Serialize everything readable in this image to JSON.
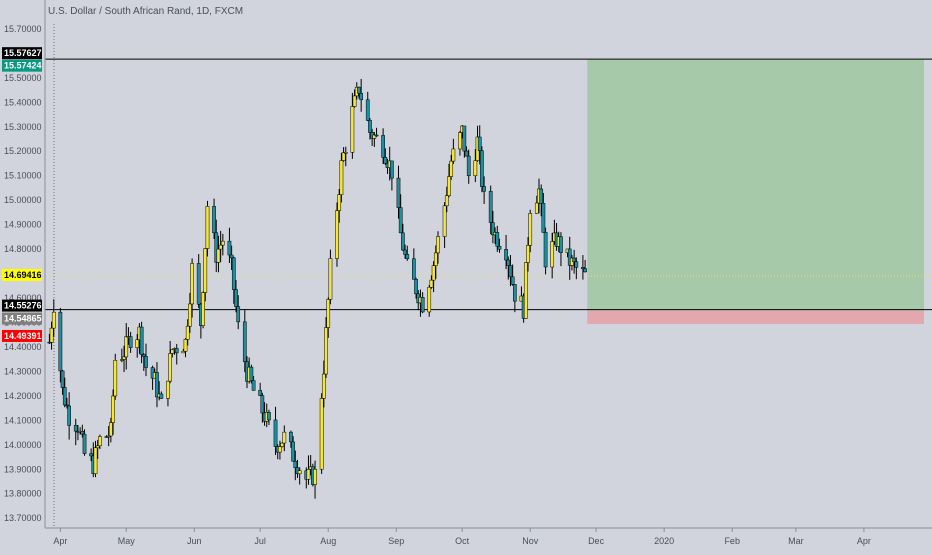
{
  "chart_data": {
    "type": "candlestick",
    "title": "U.S. Dollar / South African Rand, 1D, FXCM",
    "y_axis": {
      "range": [
        13.66,
        15.72
      ],
      "ticks": [
        "15.70000",
        "15.60000",
        "15.50000",
        "15.40000",
        "15.30000",
        "15.20000",
        "15.10000",
        "15.00000",
        "14.90000",
        "14.80000",
        "14.70000",
        "14.60000",
        "14.50000",
        "14.40000",
        "14.30000",
        "14.20000",
        "14.10000",
        "14.00000",
        "13.90000",
        "13.80000",
        "13.70000"
      ]
    },
    "x_axis": {
      "labels": [
        "Apr",
        "May",
        "Jun",
        "Jul",
        "Aug",
        "Sep",
        "Oct",
        "Nov",
        "Dec",
        "2020",
        "Feb",
        "Mar",
        "Apr"
      ]
    },
    "price_badges": [
      {
        "name": "target-line",
        "value": "15.57627",
        "bg": "#000000",
        "fg": "#ffffff"
      },
      {
        "name": "target-price",
        "value": "15.57424",
        "bg": "#089981",
        "fg": "#ffffff"
      },
      {
        "name": "current-price",
        "value": "14.69416",
        "bg": "#ffff00",
        "fg": "#000000"
      },
      {
        "name": "entry-line",
        "value": "14.55276",
        "bg": "#000000",
        "fg": "#ffffff"
      },
      {
        "name": "entry-price",
        "value": "14.54865",
        "bg": "#7f7f7f",
        "fg": "#ffffff"
      },
      {
        "name": "stop-price",
        "value": "14.49391",
        "bg": "#ff0000",
        "fg": "#ffffff"
      }
    ],
    "horizontal_lines": [
      {
        "name": "upper-line",
        "price": 15.57627,
        "color": "#000000"
      },
      {
        "name": "entry-line",
        "price": 14.55276,
        "color": "#000000"
      }
    ],
    "position_zone": {
      "start_date": "2019-11-27",
      "end_date": "2020-04-30",
      "entry": 14.54865,
      "target": 15.57424,
      "stop": 14.49391,
      "profit_color": "#a5c9a9",
      "loss_color": "#e2a8ad"
    },
    "candle_colors": {
      "up": "#f5e63b",
      "down": "#1e8fa0",
      "wick": "#000000"
    },
    "anchors": [
      {
        "d": "2019-03-27",
        "c": 14.42
      },
      {
        "d": "2019-03-29",
        "c": 14.58
      },
      {
        "d": "2019-04-02",
        "c": 14.22
      },
      {
        "d": "2019-04-05",
        "c": 14.12
      },
      {
        "d": "2019-04-09",
        "c": 14.08
      },
      {
        "d": "2019-04-12",
        "c": 13.96
      },
      {
        "d": "2019-04-16",
        "c": 13.92
      },
      {
        "d": "2019-04-19",
        "c": 14.02
      },
      {
        "d": "2019-04-24",
        "c": 14.05
      },
      {
        "d": "2019-04-26",
        "c": 14.35
      },
      {
        "d": "2019-04-30",
        "c": 14.38
      },
      {
        "d": "2019-05-03",
        "c": 14.44
      },
      {
        "d": "2019-05-07",
        "c": 14.46
      },
      {
        "d": "2019-05-10",
        "c": 14.32
      },
      {
        "d": "2019-05-14",
        "c": 14.26
      },
      {
        "d": "2019-05-17",
        "c": 14.16
      },
      {
        "d": "2019-05-22",
        "c": 14.39
      },
      {
        "d": "2019-05-28",
        "c": 14.42
      },
      {
        "d": "2019-05-31",
        "c": 14.72
      },
      {
        "d": "2019-06-04",
        "c": 14.5
      },
      {
        "d": "2019-06-07",
        "c": 14.98
      },
      {
        "d": "2019-06-11",
        "c": 14.78
      },
      {
        "d": "2019-06-14",
        "c": 14.84
      },
      {
        "d": "2019-06-18",
        "c": 14.72
      },
      {
        "d": "2019-06-21",
        "c": 14.48
      },
      {
        "d": "2019-06-25",
        "c": 14.3
      },
      {
        "d": "2019-06-28",
        "c": 14.22
      },
      {
        "d": "2019-07-03",
        "c": 14.12
      },
      {
        "d": "2019-07-08",
        "c": 14.0
      },
      {
        "d": "2019-07-12",
        "c": 14.03
      },
      {
        "d": "2019-07-17",
        "c": 13.94
      },
      {
        "d": "2019-07-22",
        "c": 13.86
      },
      {
        "d": "2019-07-26",
        "c": 13.88
      },
      {
        "d": "2019-07-30",
        "c": 14.32
      },
      {
        "d": "2019-08-02",
        "c": 14.72
      },
      {
        "d": "2019-08-07",
        "c": 15.14
      },
      {
        "d": "2019-08-12",
        "c": 15.36
      },
      {
        "d": "2019-08-15",
        "c": 15.46
      },
      {
        "d": "2019-08-20",
        "c": 15.28
      },
      {
        "d": "2019-08-26",
        "c": 15.22
      },
      {
        "d": "2019-08-30",
        "c": 15.12
      },
      {
        "d": "2019-09-03",
        "c": 14.86
      },
      {
        "d": "2019-09-06",
        "c": 14.72
      },
      {
        "d": "2019-09-10",
        "c": 14.64
      },
      {
        "d": "2019-09-13",
        "c": 14.58
      },
      {
        "d": "2019-09-18",
        "c": 14.74
      },
      {
        "d": "2019-09-23",
        "c": 14.98
      },
      {
        "d": "2019-09-26",
        "c": 15.16
      },
      {
        "d": "2019-10-01",
        "c": 15.28
      },
      {
        "d": "2019-10-04",
        "c": 15.1
      },
      {
        "d": "2019-10-08",
        "c": 15.24
      },
      {
        "d": "2019-10-11",
        "c": 15.0
      },
      {
        "d": "2019-10-16",
        "c": 14.86
      },
      {
        "d": "2019-10-21",
        "c": 14.8
      },
      {
        "d": "2019-10-25",
        "c": 14.62
      },
      {
        "d": "2019-10-29",
        "c": 14.56
      },
      {
        "d": "2019-11-01",
        "c": 14.98
      },
      {
        "d": "2019-11-05",
        "c": 15.04
      },
      {
        "d": "2019-11-08",
        "c": 14.76
      },
      {
        "d": "2019-11-13",
        "c": 14.84
      },
      {
        "d": "2019-11-18",
        "c": 14.76
      },
      {
        "d": "2019-11-22",
        "c": 14.72
      },
      {
        "d": "2019-11-26",
        "c": 14.69
      }
    ]
  }
}
